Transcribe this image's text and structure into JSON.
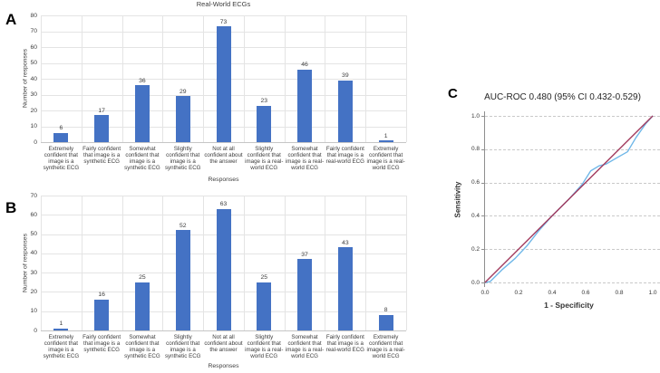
{
  "figure_description": "Three-panel figure: bar charts of confidence responses for real-world and synthetic ECGs, plus ROC curve",
  "panels": {
    "a_letter": "A",
    "b_letter": "B",
    "c_letter": "C"
  },
  "colors": {
    "bar_blue": "#4472c4",
    "roc_curve_blue": "#6fb7e8",
    "roc_reference_maroon": "#a23b5e"
  },
  "chart_data": [
    {
      "panel": "A",
      "type": "bar",
      "title": "Real-World ECGs",
      "xlabel": "Responses",
      "ylabel": "Number of responses",
      "ylim": [
        0,
        80
      ],
      "ytick_step": 10,
      "grid": true,
      "bar_color": "#4472c4",
      "categories": [
        "Extremely confident that image is a synthetic ECG",
        "Fairly confident that image is a synthetic ECG",
        "Somewhat confident that image is a synthetic ECG",
        "Slightly confident that image is a synthetic ECG",
        "Not at all confident about the answer",
        "Slightly confident that image is a real-world ECG",
        "Somewhat confident that image is a real-world ECG",
        "Fairly confident that image is a real-world ECG",
        "Extremely confident that image is a real-world ECG"
      ],
      "values": [
        6,
        17,
        36,
        29,
        73,
        23,
        46,
        39,
        1
      ]
    },
    {
      "panel": "B",
      "type": "bar",
      "title": "",
      "xlabel": "Responses",
      "ylabel": "Number of responses",
      "ylim": [
        0,
        70
      ],
      "ytick_step": 10,
      "grid": true,
      "bar_color": "#4472c4",
      "categories": [
        "Extremely confident that image is a synthetic ECG",
        "Fairly confident that image is a synthetic ECG",
        "Somewhat confident that image is a synthetic ECG",
        "Slightly confident that image is a synthetic ECG",
        "Not at all confident about the answer",
        "Slightly confident that image is a real-world ECG",
        "Somewhat confident that image is a real-world ECG",
        "Fairly confident that image is a real-world ECG",
        "Extremely confident that image is a real-world ECG"
      ],
      "values": [
        1,
        16,
        25,
        52,
        63,
        25,
        37,
        43,
        8
      ]
    },
    {
      "panel": "C",
      "type": "line",
      "title": "AUC-ROC 0.480 (95% CI 0.432-0.529)",
      "xlabel": "1 - Specificity",
      "ylabel": "Sensitivity",
      "xlim": [
        0,
        1
      ],
      "ylim": [
        0,
        1
      ],
      "xticks": [
        0.0,
        0.2,
        0.4,
        0.6,
        0.8,
        1.0
      ],
      "yticks": [
        0.0,
        0.2,
        0.4,
        0.6,
        0.8,
        1.0
      ],
      "grid": "dashed-horizontal",
      "legend": "none",
      "series": [
        {
          "name": "ROC curve",
          "color": "#6fb7e8",
          "points": [
            [
              0,
              0
            ],
            [
              0.03,
              0.005
            ],
            [
              0.1,
              0.075
            ],
            [
              0.18,
              0.145
            ],
            [
              0.25,
              0.22
            ],
            [
              0.32,
              0.31
            ],
            [
              0.4,
              0.4
            ],
            [
              0.5,
              0.5
            ],
            [
              0.58,
              0.59
            ],
            [
              0.63,
              0.67
            ],
            [
              0.68,
              0.7
            ],
            [
              0.72,
              0.71
            ],
            [
              0.78,
              0.745
            ],
            [
              0.85,
              0.785
            ],
            [
              0.9,
              0.87
            ],
            [
              0.96,
              0.955
            ],
            [
              1,
              1
            ]
          ]
        },
        {
          "name": "Reference diagonal",
          "color": "#a23b5e",
          "points": [
            [
              0,
              0
            ],
            [
              1,
              1
            ]
          ]
        }
      ]
    }
  ]
}
